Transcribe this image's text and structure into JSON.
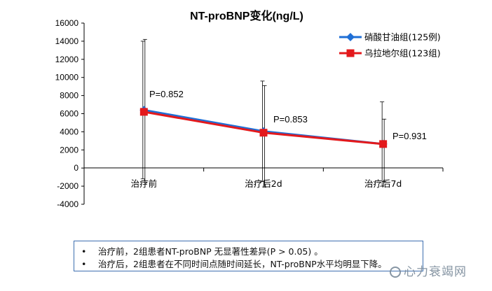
{
  "chart_data": {
    "type": "line",
    "title": "NT-proBNP变化(ng/L)",
    "categories": [
      "治疗前",
      "治疗后2d",
      "治疗后7d"
    ],
    "yticks": [
      "16000",
      "14000",
      "12000",
      "10000",
      "8000",
      "6000",
      "4000",
      "2000",
      "0",
      "-2000",
      "-4000"
    ],
    "ylim": [
      -4000,
      16000
    ],
    "grid": false,
    "legend_position": "top-right",
    "series": [
      {
        "name": "硝酸甘油组(125例)",
        "color": "#1f6fd6",
        "marker": "diamond",
        "values": [
          6400,
          4050,
          2650
        ],
        "error_upper": [
          14000,
          9600,
          7300
        ],
        "error_lower": [
          -1200,
          -1500,
          -2000
        ]
      },
      {
        "name": "乌拉地尔组(123组)",
        "color": "#e3191c",
        "marker": "square",
        "values": [
          6200,
          3900,
          2650
        ],
        "error_upper": [
          14200,
          9100,
          5400
        ],
        "error_lower": [
          -1800,
          -2100,
          -1500
        ]
      }
    ],
    "annotations": [
      "P=0.852",
      "P=0.853",
      "P=0.931"
    ]
  },
  "notes": [
    {
      "bullet": "•",
      "text": "治疗前，2组患者NT-proBNP 无显著性差异(P > 0.05) 。"
    },
    {
      "bullet": "•",
      "text": "治疗后，2组患者在不同时间点随时间延长，NT-proBNP水平均明显下降。"
    }
  ],
  "watermark": "心力衰竭网"
}
